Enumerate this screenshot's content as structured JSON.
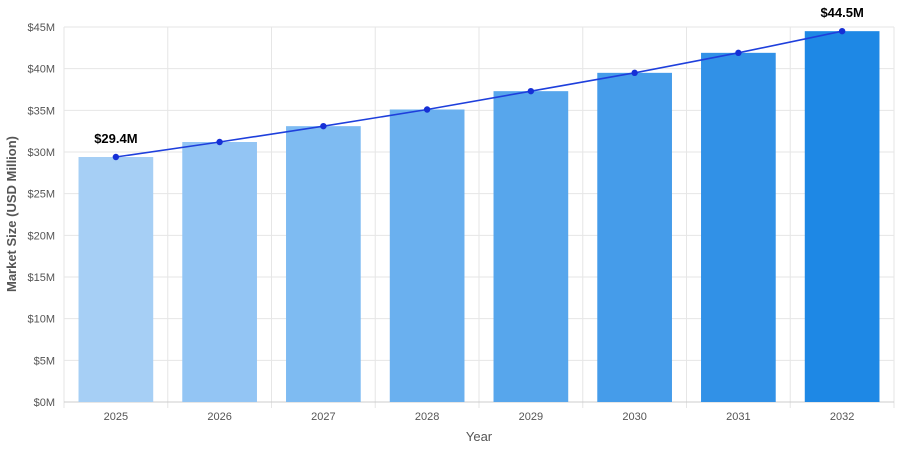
{
  "chart_data": {
    "type": "bar",
    "categories": [
      "2025",
      "2026",
      "2027",
      "2028",
      "2029",
      "2030",
      "2031",
      "2032"
    ],
    "values": [
      29.4,
      31.2,
      33.1,
      35.1,
      37.3,
      39.5,
      41.9,
      44.5
    ],
    "line_overlay": [
      29.4,
      31.2,
      33.1,
      35.1,
      37.3,
      39.5,
      41.9,
      44.5
    ],
    "xlabel": "Year",
    "ylabel": "Market Size (USD Million)",
    "ylim": [
      0,
      45
    ],
    "yticks": [
      0,
      5,
      10,
      15,
      20,
      25,
      30,
      35,
      40,
      45
    ],
    "ytick_labels": [
      "$0M",
      "$5M",
      "$10M",
      "$15M",
      "$20M",
      "$25M",
      "$30M",
      "$35M",
      "$40M",
      "$45M"
    ],
    "annotations": [
      {
        "category": "2025",
        "text": "$29.4M"
      },
      {
        "category": "2032",
        "text": "$44.5M"
      }
    ],
    "grid": true,
    "legend": "none",
    "colors": {
      "bars": [
        "#a6cff5",
        "#93c5f4",
        "#7ebbf2",
        "#6ab0ef",
        "#57a6ec",
        "#459cea",
        "#3191e7",
        "#1e88e5"
      ],
      "line": "#1e3fdc",
      "marker": "#1630d6"
    }
  }
}
